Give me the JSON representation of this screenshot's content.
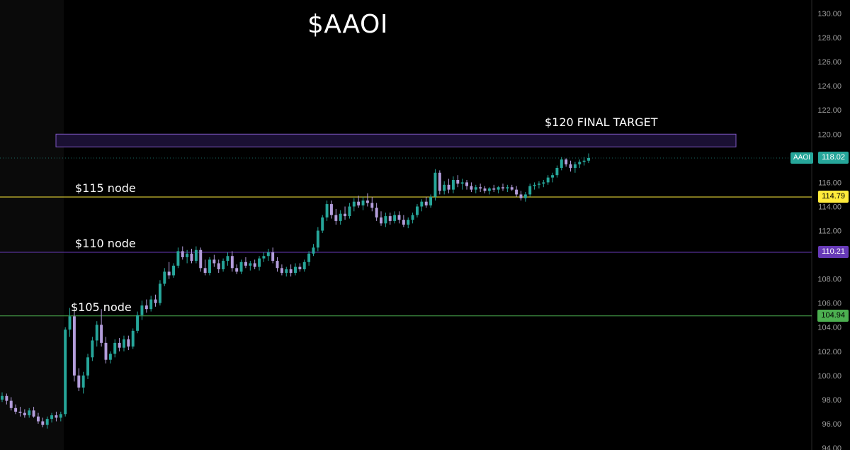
{
  "chart_data": {
    "type": "candlestick",
    "title": "$AAOI",
    "symbol": "AAOI",
    "last_price": "118.02",
    "ylim": [
      94,
      131
    ],
    "yticks": [
      "130.00",
      "128.00",
      "126.00",
      "124.00",
      "122.00",
      "120.00",
      "118.00",
      "116.00",
      "114.00",
      "112.00",
      "110.00",
      "108.00",
      "106.00",
      "104.00",
      "102.00",
      "100.00",
      "98.00",
      "96.00",
      "94.00"
    ],
    "zone": {
      "label": "$120 FINAL TARGET",
      "low": 119.35,
      "high": 120.0,
      "color": "#7e57c2"
    },
    "levels": [
      {
        "label": "$115 node",
        "value": 114.79,
        "tag": "114.79",
        "color": "#ffeb3b",
        "text_color": "#000000"
      },
      {
        "label": "$110 node",
        "value": 110.21,
        "tag": "110.21",
        "color": "#673ab7",
        "text_color": "#ffffff"
      },
      {
        "label": "$105 node",
        "value": 104.94,
        "tag": "104.94",
        "color": "#4caf50",
        "text_color": "#000000"
      }
    ],
    "colors": {
      "up": "#26a69a",
      "down": "#b39ddb",
      "background": "#000000",
      "axis_text": "#9e9e9e",
      "last_price": "#26a69a"
    },
    "candles": [
      [
        98.0,
        98.6,
        97.8,
        98.3
      ],
      [
        98.3,
        98.5,
        97.6,
        97.9
      ],
      [
        97.9,
        98.2,
        97.1,
        97.3
      ],
      [
        97.3,
        97.6,
        96.8,
        97.0
      ],
      [
        97.0,
        97.4,
        96.6,
        96.9
      ],
      [
        96.9,
        97.2,
        96.5,
        96.7
      ],
      [
        96.7,
        97.3,
        96.5,
        97.1
      ],
      [
        97.1,
        97.4,
        96.5,
        96.6
      ],
      [
        96.6,
        96.9,
        96.0,
        96.2
      ],
      [
        96.2,
        96.5,
        95.7,
        95.9
      ],
      [
        95.9,
        96.6,
        95.6,
        96.4
      ],
      [
        96.4,
        96.9,
        96.1,
        96.7
      ],
      [
        96.7,
        97.0,
        96.2,
        96.5
      ],
      [
        96.5,
        97.0,
        96.2,
        96.8
      ],
      [
        96.8,
        104.0,
        96.6,
        103.8
      ],
      [
        103.8,
        105.6,
        103.2,
        104.9
      ],
      [
        104.9,
        105.2,
        99.5,
        100.0
      ],
      [
        100.0,
        100.6,
        98.7,
        99.0
      ],
      [
        99.0,
        100.3,
        98.5,
        100.0
      ],
      [
        100.0,
        101.8,
        99.7,
        101.5
      ],
      [
        101.5,
        103.2,
        101.2,
        102.9
      ],
      [
        102.9,
        104.5,
        102.4,
        104.2
      ],
      [
        104.2,
        105.5,
        102.4,
        102.7
      ],
      [
        102.7,
        103.2,
        101.0,
        101.3
      ],
      [
        101.3,
        102.0,
        101.0,
        101.8
      ],
      [
        101.8,
        103.0,
        101.5,
        102.7
      ],
      [
        102.7,
        103.1,
        102.0,
        102.3
      ],
      [
        102.3,
        103.3,
        102.0,
        103.0
      ],
      [
        103.0,
        103.3,
        102.1,
        102.4
      ],
      [
        102.4,
        103.9,
        102.2,
        103.7
      ],
      [
        103.7,
        105.3,
        103.5,
        105.0
      ],
      [
        105.0,
        106.2,
        104.6,
        105.8
      ],
      [
        105.8,
        106.3,
        105.2,
        105.5
      ],
      [
        105.5,
        106.6,
        105.3,
        106.3
      ],
      [
        106.3,
        106.7,
        105.7,
        106.0
      ],
      [
        106.0,
        107.9,
        105.8,
        107.6
      ],
      [
        107.6,
        108.9,
        107.4,
        108.6
      ],
      [
        108.6,
        109.4,
        108.0,
        108.3
      ],
      [
        108.3,
        109.3,
        108.1,
        109.1
      ],
      [
        109.1,
        110.6,
        108.9,
        110.3
      ],
      [
        110.3,
        110.7,
        109.6,
        109.8
      ],
      [
        109.8,
        110.4,
        109.3,
        110.1
      ],
      [
        110.1,
        110.5,
        109.3,
        109.5
      ],
      [
        109.5,
        110.7,
        109.3,
        110.4
      ],
      [
        110.4,
        110.6,
        108.6,
        108.9
      ],
      [
        108.9,
        109.6,
        108.3,
        108.5
      ],
      [
        108.5,
        109.8,
        108.3,
        109.6
      ],
      [
        109.6,
        110.0,
        109.0,
        109.3
      ],
      [
        109.3,
        109.6,
        108.5,
        108.8
      ],
      [
        108.8,
        109.7,
        108.6,
        109.5
      ],
      [
        109.5,
        110.2,
        109.1,
        109.9
      ],
      [
        109.9,
        110.3,
        108.6,
        108.9
      ],
      [
        108.9,
        109.2,
        108.4,
        108.6
      ],
      [
        108.6,
        109.6,
        108.4,
        109.4
      ],
      [
        109.4,
        109.8,
        108.9,
        109.1
      ],
      [
        109.1,
        109.5,
        108.7,
        109.3
      ],
      [
        109.3,
        109.6,
        108.8,
        109.0
      ],
      [
        109.0,
        109.9,
        108.7,
        109.7
      ],
      [
        109.7,
        110.2,
        109.4,
        109.9
      ],
      [
        109.9,
        110.5,
        109.5,
        110.2
      ],
      [
        110.2,
        110.6,
        109.3,
        109.5
      ],
      [
        109.5,
        109.8,
        108.6,
        108.9
      ],
      [
        108.9,
        109.2,
        108.3,
        108.5
      ],
      [
        108.5,
        109.0,
        108.2,
        108.8
      ],
      [
        108.8,
        109.2,
        108.2,
        108.5
      ],
      [
        108.5,
        109.3,
        108.3,
        109.0
      ],
      [
        109.0,
        109.3,
        108.6,
        108.8
      ],
      [
        108.8,
        109.6,
        108.6,
        109.4
      ],
      [
        109.4,
        110.3,
        109.1,
        110.1
      ],
      [
        110.1,
        110.9,
        109.9,
        110.6
      ],
      [
        110.6,
        112.3,
        110.3,
        112.0
      ],
      [
        112.0,
        113.3,
        111.8,
        113.1
      ],
      [
        113.1,
        114.5,
        112.8,
        114.2
      ],
      [
        114.2,
        114.5,
        113.0,
        113.3
      ],
      [
        113.3,
        113.8,
        112.5,
        112.8
      ],
      [
        112.8,
        113.7,
        112.5,
        113.4
      ],
      [
        113.4,
        114.0,
        112.9,
        113.2
      ],
      [
        113.2,
        114.3,
        113.0,
        114.0
      ],
      [
        114.0,
        114.7,
        113.6,
        114.4
      ],
      [
        114.4,
        114.9,
        113.9,
        114.1
      ],
      [
        114.1,
        114.8,
        113.7,
        114.5
      ],
      [
        114.5,
        115.1,
        114.0,
        114.3
      ],
      [
        114.3,
        114.8,
        113.6,
        113.9
      ],
      [
        113.9,
        114.3,
        112.8,
        113.1
      ],
      [
        113.1,
        113.6,
        112.4,
        112.6
      ],
      [
        112.6,
        113.5,
        112.3,
        113.2
      ],
      [
        113.2,
        113.5,
        112.5,
        112.8
      ],
      [
        112.8,
        113.6,
        112.6,
        113.3
      ],
      [
        113.3,
        113.6,
        112.6,
        112.9
      ],
      [
        112.9,
        113.3,
        112.3,
        112.5
      ],
      [
        112.5,
        113.1,
        112.2,
        112.9
      ],
      [
        112.9,
        113.5,
        112.6,
        113.3
      ],
      [
        113.3,
        114.2,
        113.1,
        114.0
      ],
      [
        114.0,
        114.6,
        113.6,
        114.4
      ],
      [
        114.4,
        114.8,
        113.9,
        114.1
      ],
      [
        114.1,
        115.0,
        113.9,
        114.8
      ],
      [
        114.8,
        117.1,
        114.5,
        116.8
      ],
      [
        116.8,
        117.0,
        115.0,
        115.3
      ],
      [
        115.3,
        116.1,
        115.0,
        115.8
      ],
      [
        115.8,
        116.3,
        115.1,
        115.4
      ],
      [
        115.4,
        116.5,
        115.1,
        116.2
      ],
      [
        116.2,
        116.6,
        115.6,
        115.9
      ],
      [
        115.9,
        116.3,
        115.4,
        116.0
      ],
      [
        116.0,
        116.2,
        115.4,
        115.7
      ],
      [
        115.7,
        116.0,
        115.2,
        115.4
      ],
      [
        115.4,
        115.8,
        115.1,
        115.6
      ],
      [
        115.6,
        115.9,
        115.2,
        115.5
      ],
      [
        115.5,
        115.7,
        115.1,
        115.3
      ],
      [
        115.3,
        115.6,
        115.0,
        115.5
      ],
      [
        115.5,
        115.8,
        115.2,
        115.4
      ],
      [
        115.4,
        115.7,
        115.1,
        115.6
      ],
      [
        115.6,
        115.9,
        115.3,
        115.5
      ],
      [
        115.5,
        115.8,
        115.2,
        115.6
      ],
      [
        115.6,
        115.8,
        115.3,
        115.4
      ],
      [
        115.4,
        115.7,
        114.8,
        115.0
      ],
      [
        115.0,
        115.3,
        114.5,
        114.7
      ],
      [
        114.7,
        115.2,
        114.4,
        115.0
      ],
      [
        115.0,
        115.9,
        114.8,
        115.7
      ],
      [
        115.7,
        116.0,
        115.4,
        115.8
      ],
      [
        115.8,
        116.1,
        115.5,
        115.9
      ],
      [
        115.9,
        116.2,
        115.6,
        116.0
      ],
      [
        116.0,
        116.6,
        115.8,
        116.4
      ],
      [
        116.4,
        116.8,
        116.0,
        116.6
      ],
      [
        116.6,
        117.4,
        116.4,
        117.2
      ],
      [
        117.2,
        118.1,
        117.0,
        117.9
      ],
      [
        117.9,
        118.0,
        117.3,
        117.5
      ],
      [
        117.5,
        117.8,
        116.9,
        117.2
      ],
      [
        117.2,
        117.7,
        116.8,
        117.5
      ],
      [
        117.5,
        117.9,
        117.2,
        117.7
      ],
      [
        117.7,
        118.1,
        117.4,
        117.8
      ],
      [
        117.8,
        118.4,
        117.6,
        118.02
      ]
    ]
  }
}
